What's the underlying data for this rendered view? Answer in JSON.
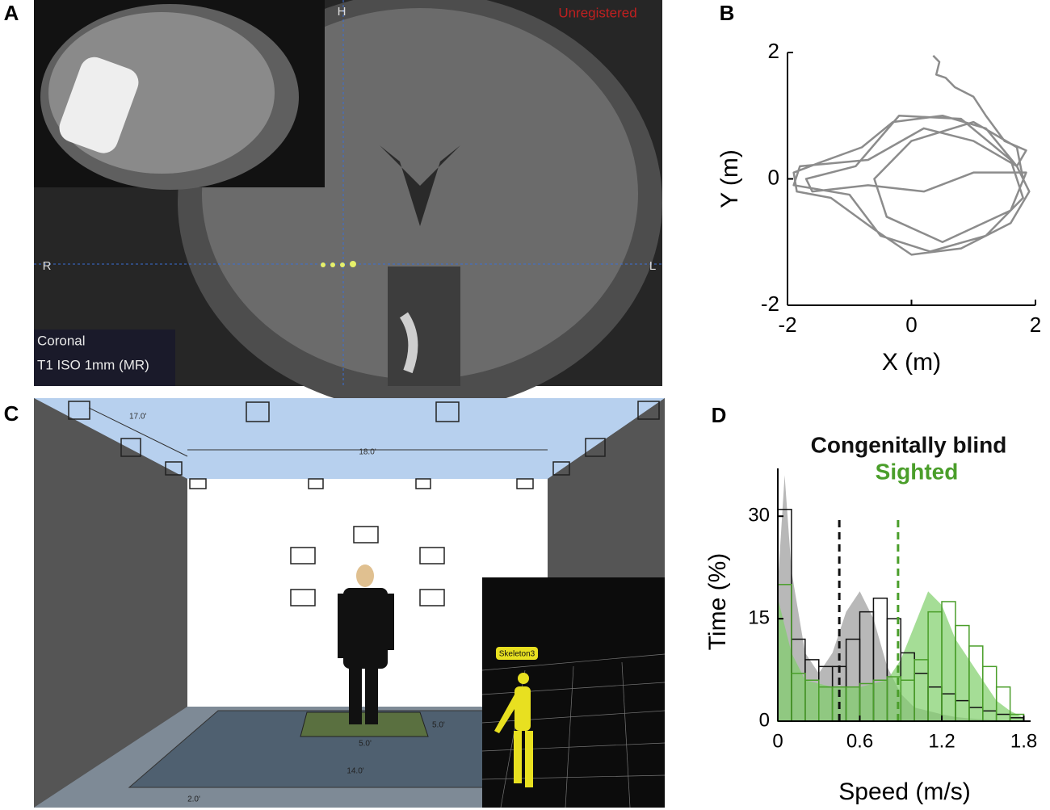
{
  "panel_labels": [
    "A",
    "B",
    "C",
    "D"
  ],
  "panels": {
    "a": {
      "cursor_top": "H",
      "status": "Unregistered",
      "left": "R",
      "right": "L",
      "view": "Coronal",
      "sequence": "T1 ISO 1mm (MR)"
    },
    "c": {
      "dims": [
        "17.0'",
        "18.0'",
        "5.0'",
        "5.0'",
        "14.0'",
        "2.0'"
      ],
      "inset_label": "Skeleton3"
    }
  },
  "chart_data": [
    {
      "type": "line",
      "x_label": "X (m)",
      "y_label": "Y (m)",
      "x": [
        0.35,
        0.45,
        0.4,
        0.55,
        0.7,
        1.0,
        1.2,
        1.5,
        1.85,
        1.7,
        1.2,
        0.5,
        -0.3,
        -0.8,
        -1.5,
        -1.9,
        -1.85,
        -1.3,
        -0.6,
        0,
        0.8,
        1.6,
        1.9,
        1.7,
        1.0,
        0.2,
        -0.7,
        -1.8,
        -1.9,
        -1.0,
        -0.5,
        0.3,
        1.2,
        1.8,
        1.6,
        0.8,
        -0.2,
        -0.9,
        -1.7,
        -1.6,
        -0.7,
        0.2,
        1.0,
        1.85,
        1.6,
        0.5,
        -0.4,
        -0.6,
        0.0,
        1.0,
        1.7,
        1.8
      ],
      "series": [
        {
          "color": "#8c8c8c",
          "values": [
            1.95,
            1.85,
            1.65,
            1.6,
            1.45,
            1.3,
            1.0,
            0.6,
            0.45,
            0.2,
            0.8,
            1.0,
            0.9,
            0.5,
            0.25,
            0.1,
            -0.2,
            -0.3,
            -0.8,
            -1.2,
            -1.1,
            -0.7,
            -0.2,
            0.2,
            0.6,
            0.8,
            0.3,
            0.2,
            -0.1,
            -0.25,
            -0.9,
            -1.15,
            -0.9,
            -0.3,
            0.3,
            0.95,
            1.0,
            0.2,
            0.0,
            -0.2,
            -0.1,
            -0.2,
            0.1,
            0.1,
            -0.5,
            -1.0,
            -0.6,
            0.0,
            0.6,
            0.9,
            0.5,
            0.0
          ]
        }
      ],
      "xlim": [
        -2,
        2
      ],
      "ylim": [
        -2,
        2
      ],
      "xticks": [
        -2,
        0,
        2
      ],
      "yticks": [
        -2,
        0,
        2
      ]
    },
    {
      "type": "histogram",
      "x_label": "Speed (m/s)",
      "y_label": "Time (%)",
      "bins": [
        0,
        0.1,
        0.2,
        0.3,
        0.4,
        0.5,
        0.6,
        0.7,
        0.8,
        0.9,
        1.0,
        1.1,
        1.2,
        1.3,
        1.4,
        1.5,
        1.6,
        1.7,
        1.8
      ],
      "density_x": [
        0,
        0.05,
        0.1,
        0.2,
        0.3,
        0.4,
        0.5,
        0.6,
        0.7,
        0.8,
        0.9,
        1.0,
        1.1,
        1.2,
        1.3,
        1.4,
        1.5,
        1.6,
        1.7,
        1.8
      ],
      "series": [
        {
          "name": "Congenitally blind",
          "color": "#111111",
          "fill": "#9a9a9a",
          "mean": 0.45,
          "values": [
            31,
            12,
            9,
            8,
            8,
            12,
            16,
            18,
            15,
            10,
            7,
            5,
            4,
            3,
            2,
            1.5,
            1,
            0.5
          ],
          "density": [
            20,
            36,
            22,
            10,
            7,
            10,
            16,
            19,
            15,
            8,
            4,
            2,
            1.5,
            1,
            0.6,
            0.4,
            0.3,
            0.2,
            0.1,
            0
          ]
        },
        {
          "name": "Sighted",
          "color": "#4a9e2a",
          "fill": "#7fcf6a",
          "mean": 0.88,
          "values": [
            20,
            7,
            6,
            5,
            5,
            5,
            5.5,
            6,
            6.5,
            6,
            9,
            16,
            17.5,
            14,
            11,
            8,
            5,
            1
          ],
          "density": [
            18,
            14,
            10,
            6,
            5.5,
            5,
            5,
            5,
            5.5,
            6,
            9,
            14,
            19,
            17,
            12,
            9,
            6,
            3,
            1.5,
            0.5
          ]
        }
      ],
      "xlim": [
        0,
        1.85
      ],
      "ylim": [
        0,
        37
      ],
      "xticks": [
        0,
        0.6,
        1.2,
        1.8
      ],
      "yticks": [
        0,
        15,
        30
      ]
    }
  ]
}
